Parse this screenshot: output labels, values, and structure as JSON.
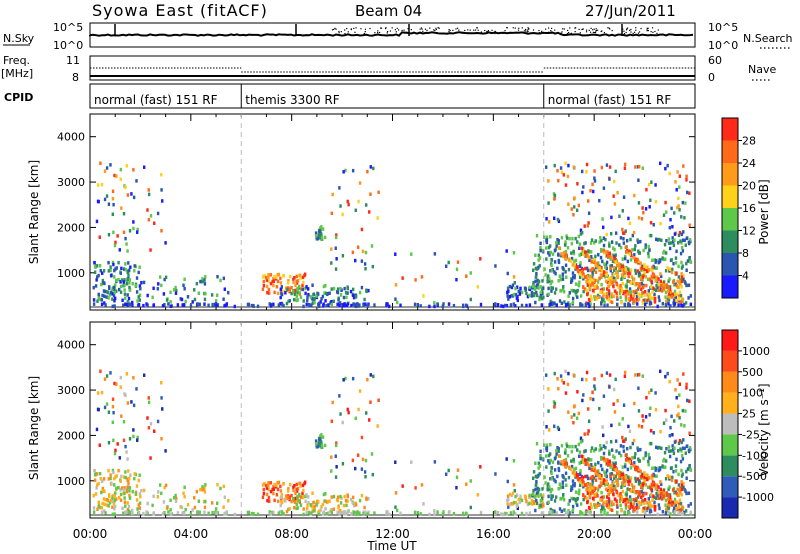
{
  "header": {
    "station": "Syowa East (fitACF)",
    "beam": "Beam 04",
    "date": "27/Jun/2011"
  },
  "left_labels": {
    "nsky": "N.Sky",
    "freq": "Freq.",
    "freq_unit": "[MHz]",
    "cpid": "CPID"
  },
  "right_labels": {
    "nsearch": "N.Search",
    "nave": "Nave"
  },
  "strip_ticks": {
    "noise_top": "10^5",
    "noise_bottom": "10^0",
    "freq_top": "11",
    "freq_bottom": "8",
    "nave_top": "60",
    "nave_bottom": "0"
  },
  "cpid_modes": [
    {
      "label": "normal (fast) 151 RF",
      "start": 0,
      "end": 6
    },
    {
      "label": "themis 3300 RF",
      "start": 6,
      "end": 18
    },
    {
      "label": "normal (fast) 151 RF",
      "start": 18,
      "end": 24
    }
  ],
  "colorbars": {
    "power": {
      "title": "Power [dB]",
      "labels": [
        "28",
        "24",
        "20",
        "16",
        "12",
        "8",
        "4"
      ],
      "colors": [
        "#1a1aff",
        "#2a55b0",
        "#2e8d5f",
        "#5ec84a",
        "#ffd21a",
        "#ff9a1a",
        "#ff6a1a",
        "#ff2a1a"
      ]
    },
    "velocity": {
      "title": "Velocity [m s⁻¹]",
      "labels": [
        "1000",
        "500",
        "100",
        "25",
        "-25",
        "-100",
        "-500",
        "-1000"
      ],
      "colors": [
        "#1a2ab0",
        "#2e5cb8",
        "#2e8d5f",
        "#5ec84a",
        "#bdbdbd",
        "#ffb01a",
        "#ff8a1a",
        "#ff4a1a",
        "#ff1a1a"
      ]
    }
  },
  "chart_data": [
    {
      "type": "heatmap",
      "title": "Power",
      "xlabel": "Time UT",
      "ylabel": "Slant Range [km]",
      "xlim": [
        0,
        24
      ],
      "ylim": [
        180,
        4500
      ],
      "x_ticks": [
        "00:00",
        "04:00",
        "08:00",
        "12:00",
        "16:00",
        "20:00",
        "00:00"
      ],
      "y_ticks": [
        1000,
        2000,
        3000,
        4000
      ]
    },
    {
      "type": "heatmap",
      "title": "Velocity",
      "xlabel": "Time UT",
      "ylabel": "Slant Range [km]",
      "xlim": [
        0,
        24
      ],
      "ylim": [
        180,
        4500
      ],
      "x_ticks": [
        "00:00",
        "04:00",
        "08:00",
        "12:00",
        "16:00",
        "20:00",
        "00:00"
      ],
      "y_ticks": [
        1000,
        2000,
        3000,
        4000
      ]
    }
  ],
  "x_axis_title": "Time UT"
}
